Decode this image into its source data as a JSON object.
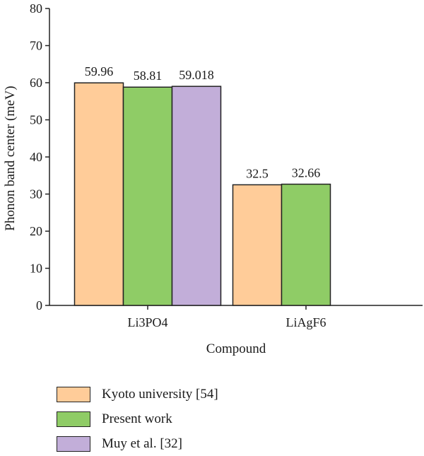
{
  "chart_data": {
    "type": "bar",
    "categories": [
      "Li3PO4",
      "LiAgF6"
    ],
    "series": [
      {
        "name": "Kyoto university [54]",
        "color": "#ffcc99",
        "values": [
          59.96,
          32.5
        ],
        "labels": [
          "59.96",
          "32.5"
        ]
      },
      {
        "name": "Present work",
        "color": "#8fcc66",
        "values": [
          58.81,
          32.66
        ],
        "labels": [
          "58.81",
          "32.66"
        ]
      },
      {
        "name": "Muy et al. [32]",
        "color": "#c2aed9",
        "values": [
          59.018,
          null
        ],
        "labels": [
          "59.018",
          ""
        ]
      }
    ],
    "xlabel": "Compound",
    "ylabel": "Phonon band center (meV)",
    "ylim": [
      0,
      80
    ],
    "yticks": [
      0,
      10,
      20,
      30,
      40,
      50,
      60,
      70,
      80
    ],
    "grid": false,
    "legend_position": "bottom"
  }
}
